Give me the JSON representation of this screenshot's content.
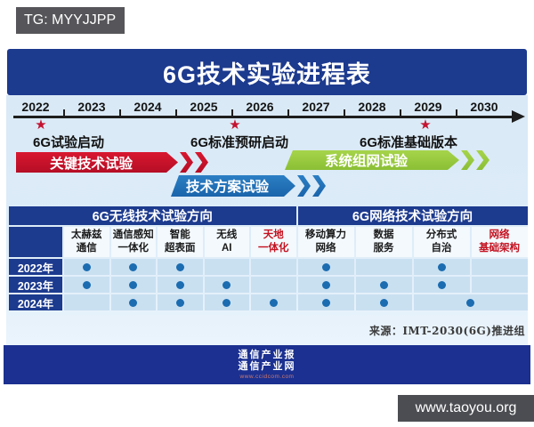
{
  "watermarks": {
    "top_left": "TG: MYYJJPP",
    "bottom_right": "www.taoyou.org"
  },
  "chart_data": {
    "type": "table",
    "title": "6G技术实验进程表",
    "timeline_years": [
      "2022",
      "2023",
      "2024",
      "2025",
      "2026",
      "2027",
      "2028",
      "2029",
      "2030"
    ],
    "milestones": [
      "6G试验启动",
      "6G标准预研启动",
      "6G标准基础版本"
    ],
    "phases": [
      {
        "label": "关键技术试验",
        "color_top": "#d8172f",
        "color_bottom": "#b50e26"
      },
      {
        "label": "技术方案试验",
        "color_top": "#2b7fc4",
        "color_bottom": "#1a64ab"
      },
      {
        "label": "系统组网试验",
        "color_top": "#a6d44a",
        "color_bottom": "#8bbf35"
      }
    ],
    "column_groups": [
      {
        "label": "6G无线技术试验方向",
        "span": 5
      },
      {
        "label": "6G网络技术试验方向",
        "span": 4
      }
    ],
    "columns": [
      {
        "line1": "太赫兹",
        "line2": "通信",
        "highlight": false
      },
      {
        "line1": "通信感知",
        "line2": "一体化",
        "highlight": false
      },
      {
        "line1": "智能",
        "line2": "超表面",
        "highlight": false
      },
      {
        "line1": "无线",
        "line2": "AI",
        "highlight": false
      },
      {
        "line1": "天地",
        "line2": "一体化",
        "highlight": true
      },
      {
        "line1": "移动算力",
        "line2": "网络",
        "highlight": false
      },
      {
        "line1": "数据",
        "line2": "服务",
        "highlight": false
      },
      {
        "line1": "分布式",
        "line2": "自治",
        "highlight": false
      },
      {
        "line1": "网络",
        "line2": "基础架构",
        "highlight": true
      }
    ],
    "rows": [
      {
        "label": "2022年",
        "dots": [
          1,
          1,
          1,
          0,
          0,
          1,
          0,
          1,
          0
        ],
        "merge_last_two": false
      },
      {
        "label": "2023年",
        "dots": [
          1,
          1,
          1,
          1,
          0,
          1,
          1,
          1,
          0
        ],
        "merge_last_two": false
      },
      {
        "label": "2024年",
        "dots": [
          0,
          1,
          1,
          1,
          1,
          1,
          1,
          1
        ],
        "merge_last_two": true
      }
    ]
  },
  "source": "来源：IMT-2030(6G)推进组",
  "footer": {
    "logo_line1": "通信产业报",
    "logo_line2": "通信产业网",
    "logo_url": "www.ccidcom.com"
  },
  "colors": {
    "navy": "#1c3a8e",
    "panel_blue": "#dcebf7",
    "cell_blue": "#c9e0f1",
    "dot_blue": "#1b6cb0",
    "star_red": "#c41230",
    "highlight_red": "#c51220",
    "footer_navy": "#1b3090",
    "watermark_gray": "#56565a"
  }
}
